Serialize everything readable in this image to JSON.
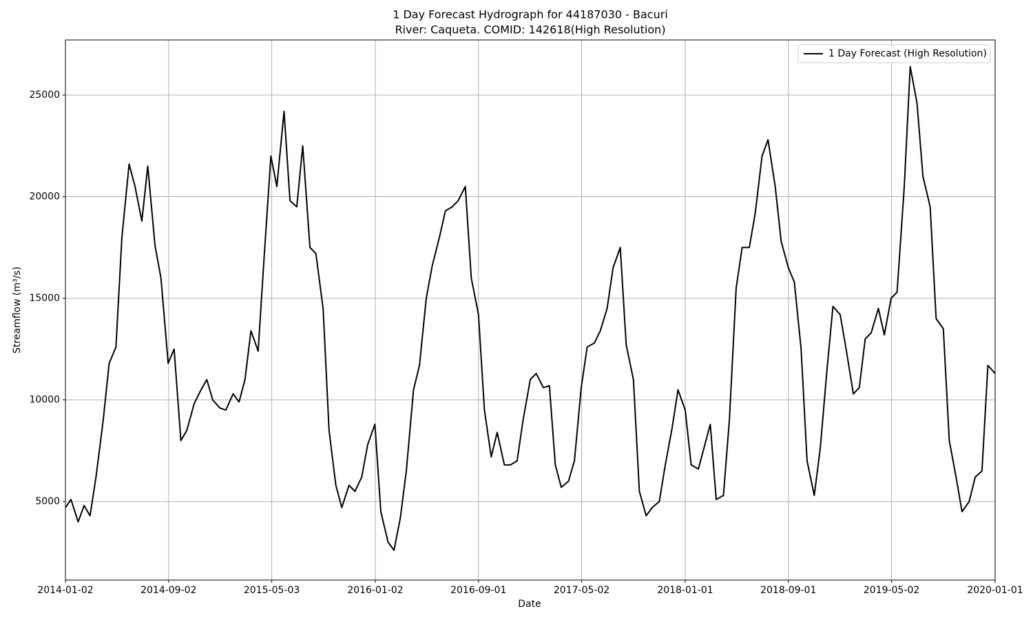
{
  "chart_data": {
    "type": "line",
    "title": "1 Day Forecast Hydrograph for 44187030 - Bacuri",
    "subtitle": "River: Caqueta. COMID: 142618(High Resolution)",
    "x_label": "Date",
    "y_label": "Streamflow (m³/s)",
    "xlim": [
      "2014-01-02",
      "2020-01-01"
    ],
    "xticks": [
      "2014-01-02",
      "2014-09-02",
      "2015-05-03",
      "2016-01-02",
      "2016-09-01",
      "2017-05-02",
      "2018-01-01",
      "2018-09-01",
      "2019-05-02",
      "2020-01-01"
    ],
    "ylim": [
      1136,
      27712
    ],
    "yticks": [
      5000,
      10000,
      15000,
      20000,
      25000
    ],
    "grid": true,
    "legend": "upper right",
    "x": [
      "2014-01-02",
      "2014-01-15",
      "2014-02-01",
      "2014-02-15",
      "2014-03-01",
      "2014-03-15",
      "2014-04-01",
      "2014-04-15",
      "2014-05-01",
      "2014-05-15",
      "2014-06-01",
      "2014-06-15",
      "2014-07-01",
      "2014-07-15",
      "2014-08-01",
      "2014-08-15",
      "2014-09-01",
      "2014-09-15",
      "2014-10-01",
      "2014-10-15",
      "2014-11-01",
      "2014-11-15",
      "2014-12-01",
      "2014-12-15",
      "2015-01-01",
      "2015-01-15",
      "2015-02-01",
      "2015-02-15",
      "2015-03-01",
      "2015-03-15",
      "2015-04-01",
      "2015-04-15",
      "2015-05-01",
      "2015-05-15",
      "2015-06-01",
      "2015-06-15",
      "2015-07-01",
      "2015-07-15",
      "2015-08-01",
      "2015-08-15",
      "2015-09-01",
      "2015-09-15",
      "2015-10-01",
      "2015-10-15",
      "2015-11-01",
      "2015-11-15",
      "2015-12-01",
      "2015-12-15",
      "2016-01-01",
      "2016-01-15",
      "2016-02-01",
      "2016-02-15",
      "2016-03-01",
      "2016-03-15",
      "2016-04-01",
      "2016-04-15",
      "2016-05-01",
      "2016-05-15",
      "2016-06-01",
      "2016-06-15",
      "2016-07-01",
      "2016-07-15",
      "2016-08-01",
      "2016-08-15",
      "2016-09-01",
      "2016-09-15",
      "2016-10-01",
      "2016-10-15",
      "2016-11-01",
      "2016-11-15",
      "2016-12-01",
      "2016-12-15",
      "2017-01-01",
      "2017-01-15",
      "2017-02-01",
      "2017-02-15",
      "2017-03-01",
      "2017-03-15",
      "2017-04-01",
      "2017-04-15",
      "2017-05-01",
      "2017-05-15",
      "2017-06-01",
      "2017-06-15",
      "2017-07-01",
      "2017-07-15",
      "2017-08-01",
      "2017-08-15",
      "2017-09-01",
      "2017-09-15",
      "2017-10-01",
      "2017-10-15",
      "2017-11-01",
      "2017-11-15",
      "2017-12-01",
      "2017-12-15",
      "2018-01-01",
      "2018-01-15",
      "2018-02-01",
      "2018-02-15",
      "2018-03-01",
      "2018-03-15",
      "2018-04-01",
      "2018-04-15",
      "2018-05-01",
      "2018-05-15",
      "2018-06-01",
      "2018-06-15",
      "2018-07-01",
      "2018-07-15",
      "2018-08-01",
      "2018-08-15",
      "2018-09-01",
      "2018-09-15",
      "2018-10-01",
      "2018-10-15",
      "2018-11-01",
      "2018-11-15",
      "2018-12-01",
      "2018-12-15",
      "2019-01-01",
      "2019-01-15",
      "2019-02-01",
      "2019-02-15",
      "2019-03-01",
      "2019-03-15",
      "2019-04-01",
      "2019-04-15",
      "2019-05-01",
      "2019-05-15",
      "2019-06-01",
      "2019-06-15",
      "2019-07-01",
      "2019-07-15",
      "2019-08-01",
      "2019-08-15",
      "2019-09-01",
      "2019-09-15",
      "2019-10-01",
      "2019-10-15",
      "2019-11-01",
      "2019-11-15",
      "2019-12-01",
      "2019-12-15",
      "2020-01-01"
    ],
    "series": [
      {
        "name": "1 Day Forecast (High Resolution)",
        "color": "#000000",
        "values": [
          4700,
          5100,
          4000,
          4800,
          4300,
          6200,
          9000,
          11800,
          12600,
          18000,
          21600,
          20500,
          18800,
          21500,
          17600,
          16000,
          11800,
          12500,
          8000,
          8500,
          9800,
          10400,
          11000,
          10000,
          9600,
          9500,
          10300,
          9900,
          11000,
          13400,
          12400,
          17000,
          22000,
          20500,
          24200,
          19800,
          19500,
          22500,
          17500,
          17200,
          14500,
          8500,
          5800,
          4700,
          5800,
          5500,
          6200,
          7800,
          8800,
          4500,
          3000,
          2600,
          4200,
          6500,
          10500,
          11700,
          15000,
          16600,
          18000,
          19300,
          19500,
          19800,
          20500,
          16000,
          14200,
          9500,
          7200,
          8400,
          6800,
          6800,
          7000,
          9000,
          11000,
          11300,
          10600,
          10700,
          6800,
          5700,
          6000,
          7000,
          10600,
          12600,
          12800,
          13400,
          14500,
          16500,
          17500,
          12700,
          11000,
          5500,
          4300,
          4700,
          5000,
          6800,
          8600,
          10500,
          9500,
          6800,
          6600,
          7700,
          8800,
          5100,
          5300,
          9000,
          15500,
          17500,
          17500,
          19200,
          22000,
          22800,
          20500,
          17800,
          16500,
          15800,
          12500,
          7000,
          5300,
          7600,
          11500,
          14600,
          14200,
          12500,
          10300,
          10600,
          13000,
          13300,
          14500,
          13200,
          15000,
          15300,
          20500,
          26400,
          24600,
          21000,
          19500,
          14000,
          13500,
          8000,
          6200,
          4500,
          5000,
          6200,
          6500,
          11700,
          11300
        ]
      }
    ]
  }
}
